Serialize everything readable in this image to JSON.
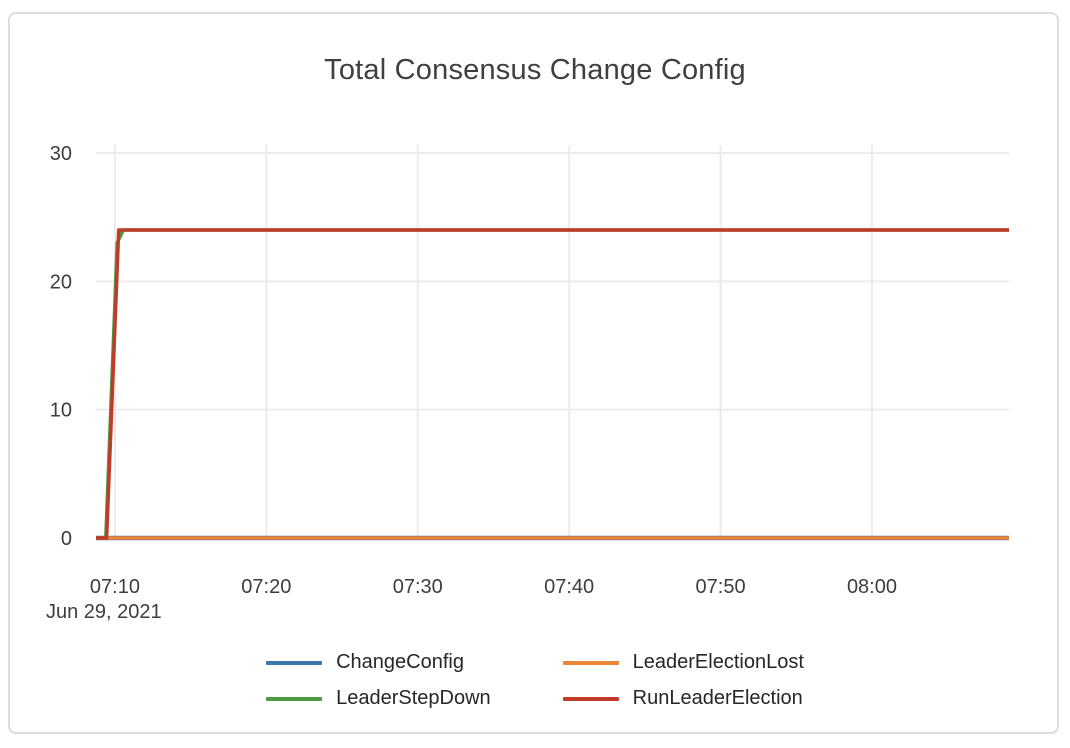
{
  "chart_data": {
    "type": "line",
    "title": "Total Consensus Change Config",
    "x_unit": "minutes after 07:00",
    "x_axis": {
      "domain": [
        8.75,
        69.05
      ],
      "ticks": [
        {
          "t": 10,
          "label": "07:10"
        },
        {
          "t": 20,
          "label": "07:20"
        },
        {
          "t": 30,
          "label": "07:30"
        },
        {
          "t": 40,
          "label": "07:40"
        },
        {
          "t": 50,
          "label": "07:50"
        },
        {
          "t": 60,
          "label": "08:00"
        }
      ],
      "date_label": "Jun 29, 2021"
    },
    "y_axis": {
      "domain": [
        0,
        30
      ],
      "ticks": [
        0,
        10,
        20,
        30
      ]
    },
    "grid": true,
    "legend_position": "bottom",
    "series": [
      {
        "name": "ChangeConfig",
        "color": "#3b76af",
        "points": [
          [
            8.75,
            0
          ],
          [
            69.05,
            0
          ]
        ]
      },
      {
        "name": "LeaderElectionLost",
        "color": "#ee8435",
        "points": [
          [
            8.75,
            0
          ],
          [
            69.05,
            0
          ]
        ]
      },
      {
        "name": "LeaderStepDown",
        "color": "#4e9b44",
        "points": [
          [
            8.75,
            0
          ],
          [
            9.4,
            0
          ],
          [
            10.15,
            23
          ],
          [
            10.55,
            24
          ],
          [
            69.05,
            24
          ]
        ]
      },
      {
        "name": "RunLeaderElection",
        "color": "#c13b2a",
        "points": [
          [
            8.75,
            0
          ],
          [
            9.45,
            0
          ],
          [
            10.25,
            24
          ],
          [
            69.05,
            24
          ]
        ]
      }
    ]
  },
  "colors": {
    "grid_line": "#ececec",
    "axis_text": "#3d3d3d",
    "title_text": "#3f3f3f",
    "legend_text": "#262626",
    "card_border": "#dcdcdc",
    "background": "#ffffff"
  }
}
